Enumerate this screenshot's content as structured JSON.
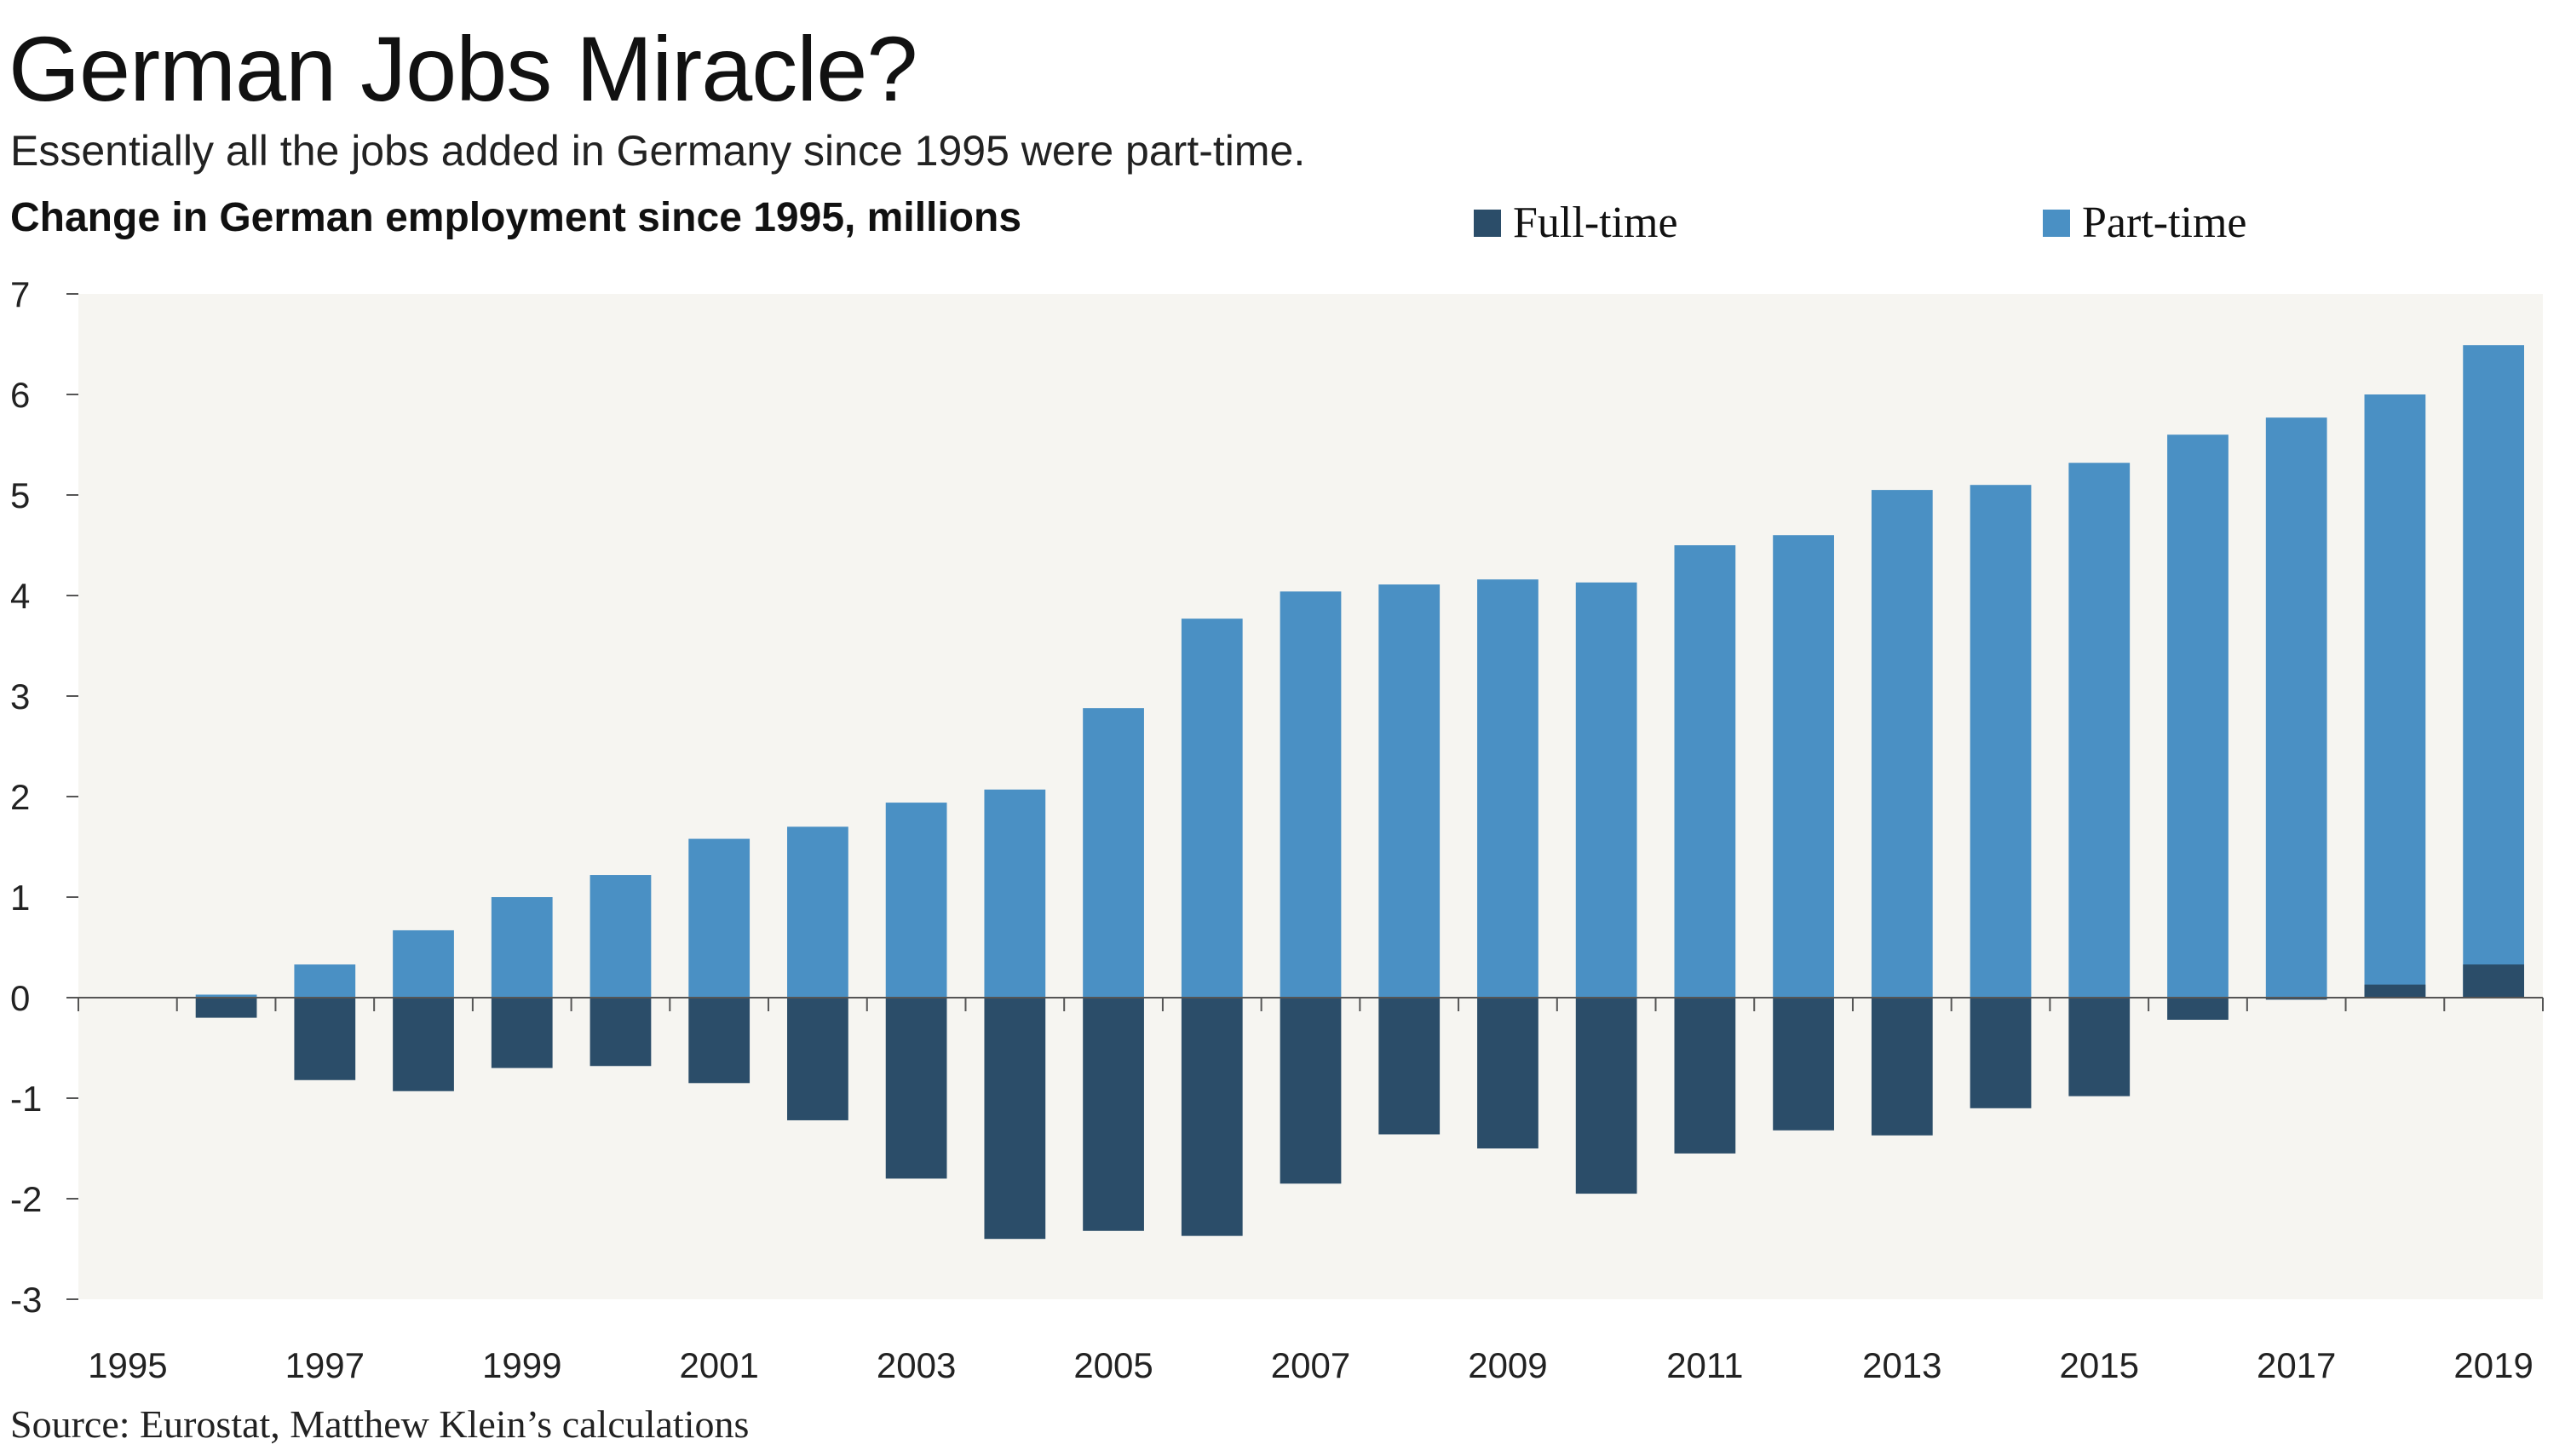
{
  "title": "German Jobs Miracle?",
  "subtitle": "Essentially all the jobs added in Germany since 1995 were part-time.",
  "source": "Source: Eurostat, Matthew Klein’s calculations",
  "colors": {
    "full_time": "#2b4d69",
    "part_time": "#4a90c4",
    "plot_bg": "#f6f5f1",
    "axis": "#555555"
  },
  "chart_data": {
    "type": "bar",
    "title": "Change in German employment since 1995, millions",
    "xlabel": "",
    "ylabel": "",
    "ylim": [
      -3,
      7
    ],
    "yticks": [
      -3,
      -2,
      -1,
      0,
      1,
      2,
      3,
      4,
      5,
      6,
      7
    ],
    "categories": [
      "1995",
      "1996",
      "1997",
      "1998",
      "1999",
      "2000",
      "2001",
      "2002",
      "2003",
      "2004",
      "2005",
      "2006",
      "2007",
      "2008",
      "2009",
      "2010",
      "2011",
      "2012",
      "2013",
      "2014",
      "2015",
      "2016",
      "2017",
      "2018",
      "2019"
    ],
    "xtick_labels": [
      "1995",
      "1997",
      "1999",
      "2001",
      "2003",
      "2005",
      "2007",
      "2009",
      "2011",
      "2013",
      "2015",
      "2017",
      "2019"
    ],
    "legend_position": "top-right",
    "series": [
      {
        "name": "Full-time",
        "key": "full_time",
        "values": [
          0,
          -0.2,
          -0.82,
          -0.93,
          -0.7,
          -0.68,
          -0.85,
          -1.22,
          -1.8,
          -2.4,
          -2.32,
          -2.37,
          -1.85,
          -1.36,
          -1.5,
          -1.95,
          -1.55,
          -1.32,
          -1.37,
          -1.1,
          -0.98,
          -0.22,
          -0.02,
          0.13,
          0.33
        ]
      },
      {
        "name": "Part-time",
        "key": "part_time",
        "values": [
          0,
          0.03,
          0.33,
          0.67,
          1.0,
          1.22,
          1.58,
          1.7,
          1.94,
          2.07,
          2.88,
          3.77,
          4.04,
          4.11,
          4.16,
          4.13,
          4.5,
          4.6,
          5.05,
          5.1,
          5.32,
          5.6,
          5.77,
          6.0,
          6.49
        ]
      }
    ]
  }
}
